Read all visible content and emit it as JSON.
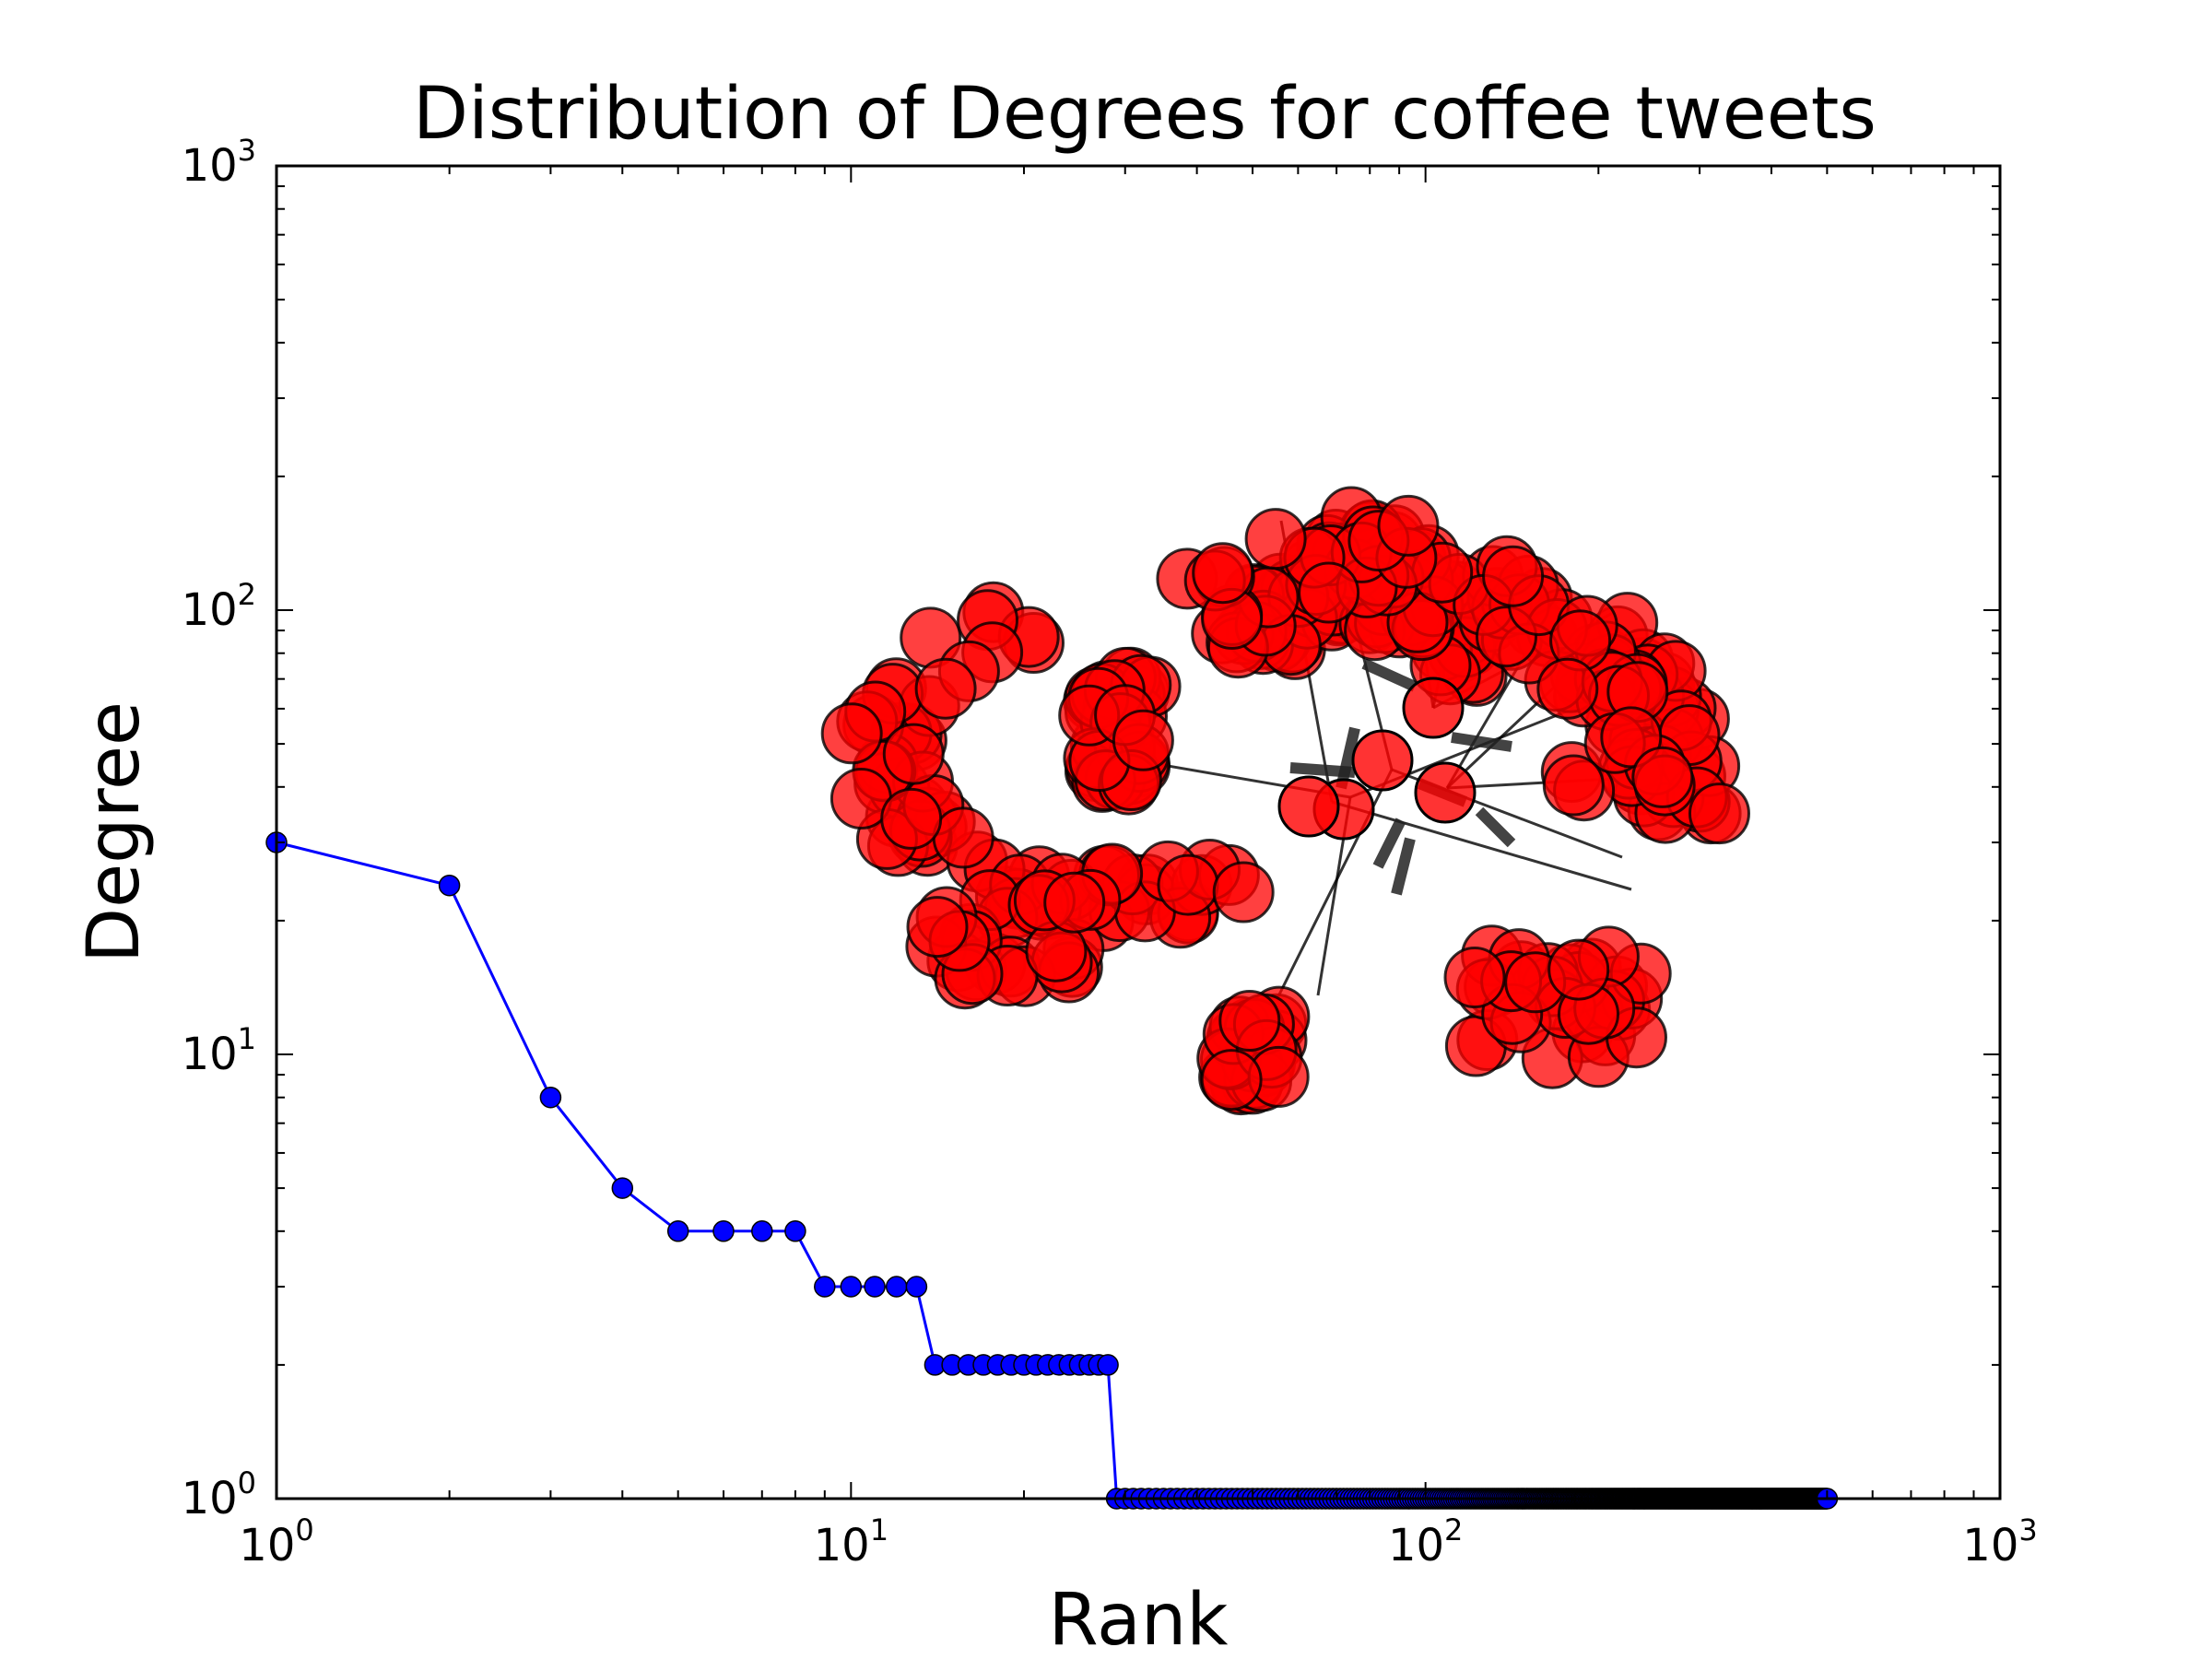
{
  "chart_data": {
    "type": "line",
    "title": "Distribution of Degrees for coffee tweets",
    "xlabel": "Rank",
    "ylabel": "Degree",
    "xscale": "log",
    "yscale": "log",
    "xlim": [
      1,
      1000
    ],
    "ylim": [
      1,
      1000
    ],
    "grid": false,
    "legend": "none",
    "xticks": [
      {
        "base": "10",
        "exp": "0"
      },
      {
        "base": "10",
        "exp": "1"
      },
      {
        "base": "10",
        "exp": "2"
      },
      {
        "base": "10",
        "exp": "3"
      }
    ],
    "yticks": [
      {
        "base": "10",
        "exp": "0"
      },
      {
        "base": "10",
        "exp": "1"
      },
      {
        "base": "10",
        "exp": "2"
      },
      {
        "base": "10",
        "exp": "3"
      }
    ],
    "series": [
      {
        "color": "#0000ff",
        "marker": "circle",
        "segments": [
          {
            "rank_from": 1,
            "rank_to": 1,
            "degree": 30
          },
          {
            "rank_from": 2,
            "rank_to": 2,
            "degree": 24
          },
          {
            "rank_from": 3,
            "rank_to": 3,
            "degree": 8
          },
          {
            "rank_from": 4,
            "rank_to": 4,
            "degree": 5
          },
          {
            "rank_from": 5,
            "rank_to": 8,
            "degree": 4
          },
          {
            "rank_from": 9,
            "rank_to": 13,
            "degree": 3
          },
          {
            "rank_from": 14,
            "rank_to": 28,
            "degree": 2
          },
          {
            "rank_from": 29,
            "rank_to": 500,
            "degree": 1
          }
        ]
      }
    ],
    "inset_network": {
      "node_color": "#ff0000",
      "edge_color": "#000000",
      "description_visible": false
    }
  }
}
